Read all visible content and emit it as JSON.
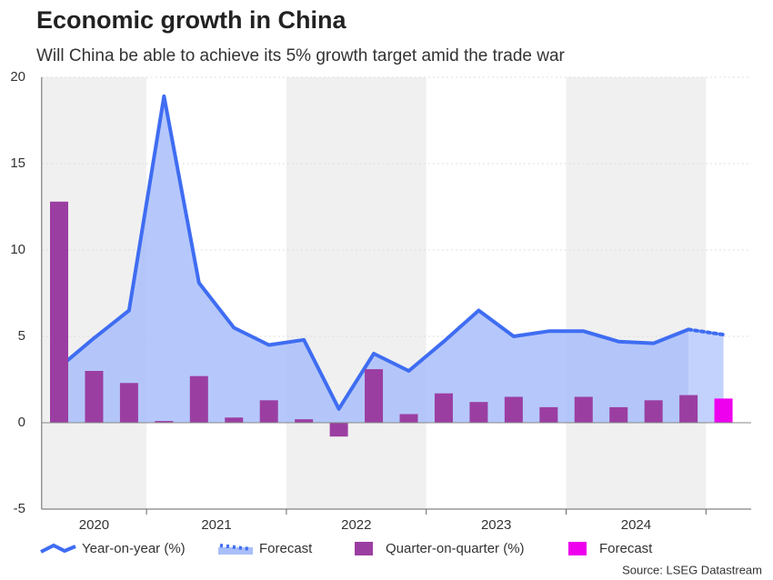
{
  "chart_data": {
    "type": "combo",
    "title": "Economic growth in China",
    "subtitle": "Will China be able to achieve its 5% growth target amid the trade war",
    "source": "Source: LSEG Datastream",
    "categories": [
      null,
      null,
      null,
      null,
      null,
      null,
      null,
      null,
      null,
      null,
      null,
      null,
      null,
      null,
      null,
      null,
      null,
      null,
      null,
      null
    ],
    "year_groups": [
      {
        "label": "2020",
        "quarters": 3,
        "shaded": true
      },
      {
        "label": "2021",
        "quarters": 4,
        "shaded": false
      },
      {
        "label": "2022",
        "quarters": 4,
        "shaded": true
      },
      {
        "label": "2023",
        "quarters": 4,
        "shaded": false
      },
      {
        "label": "2024",
        "quarters": 4,
        "shaded": true
      }
    ],
    "ylim": [
      -5,
      20
    ],
    "yticks": [
      -5,
      0,
      5,
      10,
      15,
      20
    ],
    "grid": true,
    "series": [
      {
        "name": "Year-on-year (%)",
        "kind": "area-line",
        "color": "#3f6df2",
        "values": [
          3.2,
          4.9,
          6.5,
          18.9,
          8.1,
          5.5,
          4.5,
          4.8,
          0.8,
          4.0,
          3.0,
          4.7,
          6.5,
          5.0,
          5.3,
          5.3,
          4.7,
          4.6,
          5.4,
          null
        ]
      },
      {
        "name": "Forecast",
        "kind": "forecast-line",
        "color": "#3f6df2",
        "values": [
          null,
          null,
          null,
          null,
          null,
          null,
          null,
          null,
          null,
          null,
          null,
          null,
          null,
          null,
          null,
          null,
          null,
          null,
          null,
          5.1
        ]
      },
      {
        "name": "Quarter-on-quarter (%)",
        "kind": "bar",
        "color": "#9b3ea2",
        "values": [
          12.8,
          3.0,
          2.3,
          0.1,
          2.7,
          0.3,
          1.3,
          0.2,
          -0.8,
          3.1,
          0.5,
          1.7,
          1.2,
          1.5,
          0.9,
          1.5,
          0.9,
          1.3,
          1.6,
          null
        ]
      },
      {
        "name": "Forecast",
        "kind": "bar",
        "color": "#ee00ee",
        "values": [
          null,
          null,
          null,
          null,
          null,
          null,
          null,
          null,
          null,
          null,
          null,
          null,
          null,
          null,
          null,
          null,
          null,
          null,
          null,
          1.4
        ]
      }
    ]
  }
}
